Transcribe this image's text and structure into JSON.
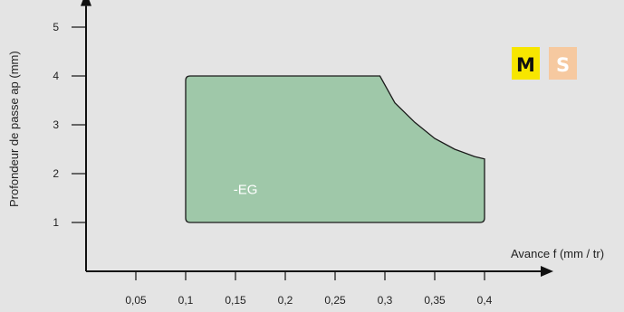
{
  "chart_data": {
    "type": "area",
    "xlabel": "Avance f (mm / tr)",
    "ylabel": "Profondeur de passe ap (mm)",
    "x_ticks": [
      {
        "value": 0.05,
        "label": "0,05"
      },
      {
        "value": 0.1,
        "label": "0,1"
      },
      {
        "value": 0.15,
        "label": "0,15"
      },
      {
        "value": 0.2,
        "label": "0,2"
      },
      {
        "value": 0.25,
        "label": "0,25"
      },
      {
        "value": 0.3,
        "label": "0,3"
      },
      {
        "value": 0.35,
        "label": "0,35"
      },
      {
        "value": 0.4,
        "label": "0,4"
      }
    ],
    "y_ticks": [
      {
        "value": 1,
        "label": "1"
      },
      {
        "value": 2,
        "label": "2"
      },
      {
        "value": 3,
        "label": "3"
      },
      {
        "value": 4,
        "label": "4"
      },
      {
        "value": 5,
        "label": "5"
      }
    ],
    "xlim": [
      0,
      0.42
    ],
    "ylim": [
      0,
      5.6
    ],
    "region": {
      "label": "-EG",
      "color": "#9fc8a9",
      "boundary": [
        [
          0.1,
          1.0
        ],
        [
          0.1,
          4.0
        ],
        [
          0.295,
          4.0
        ],
        [
          0.31,
          3.45
        ],
        [
          0.33,
          3.05
        ],
        [
          0.35,
          2.72
        ],
        [
          0.37,
          2.5
        ],
        [
          0.39,
          2.35
        ],
        [
          0.4,
          2.3
        ],
        [
          0.4,
          1.0
        ]
      ]
    },
    "badges": [
      {
        "letter": "M",
        "background": "#f7e600",
        "text_color": "#111111"
      },
      {
        "letter": "S",
        "background": "#f6c9a0",
        "text_color": "#ffffff"
      }
    ],
    "grid": false
  }
}
